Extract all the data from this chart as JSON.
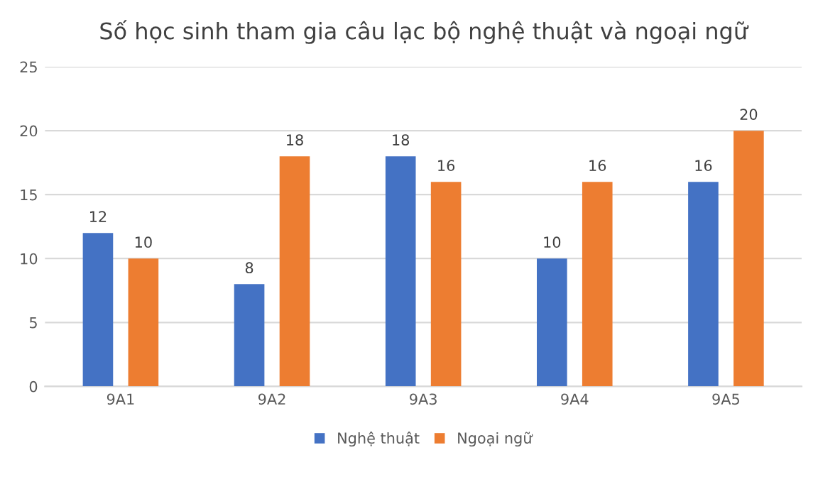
{
  "chart_data": {
    "type": "bar",
    "title": "Số học sinh tham gia câu lạc bộ nghệ thuật và ngoại ngữ",
    "categories": [
      "9A1",
      "9A2",
      "9A3",
      "9A4",
      "9A5"
    ],
    "series": [
      {
        "name": "Nghệ thuật",
        "color": "#4472c4",
        "values": [
          12,
          8,
          18,
          10,
          16
        ]
      },
      {
        "name": "Ngoại ngữ",
        "color": "#ed7d31",
        "values": [
          10,
          18,
          16,
          16,
          20
        ]
      }
    ],
    "ylim": [
      0,
      25
    ],
    "yticks": [
      0,
      5,
      10,
      15,
      20,
      25
    ],
    "grid": "y",
    "legend": "bottom",
    "data_labels": true
  }
}
